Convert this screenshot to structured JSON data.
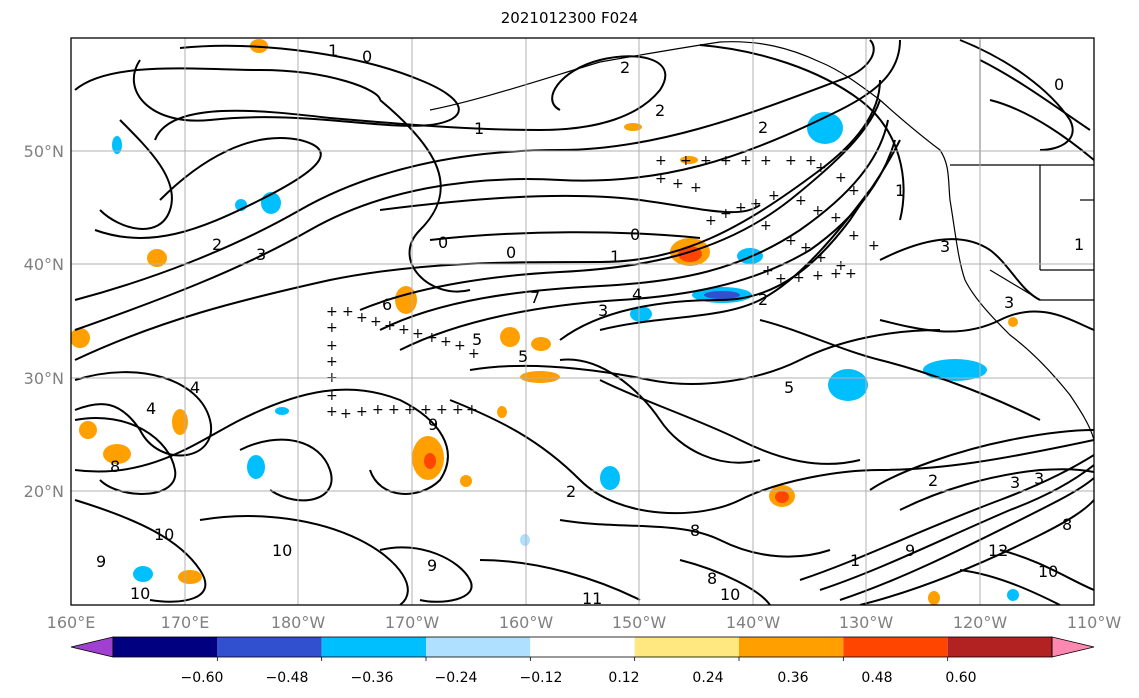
{
  "title": "2021012300 F024",
  "map": {
    "lon_range": [
      160,
      250
    ],
    "lat_range": [
      10,
      60
    ],
    "lon_labels": [
      "160°E",
      "170°E",
      "180°W",
      "170°W",
      "160°W",
      "150°W",
      "140°W",
      "130°W",
      "120°W",
      "110°W"
    ],
    "lat_labels": [
      "50°N",
      "40°N",
      "30°N",
      "20°N"
    ]
  },
  "contour_labels": [
    "1",
    "0",
    "2",
    "1",
    "2",
    "2",
    "0",
    "0",
    "1",
    "2",
    "3",
    "0",
    "0",
    "1",
    "3",
    "7",
    "6",
    "3",
    "4",
    "2",
    "3",
    "5",
    "5",
    "4",
    "4",
    "5",
    "1",
    "3",
    "2",
    "9",
    "8",
    "10",
    "9",
    "10",
    "9",
    "12",
    "10",
    "8",
    "11",
    "10",
    "2",
    "8",
    "3",
    "1",
    "9",
    "10",
    "8"
  ],
  "colorbar": {
    "tick_labels": [
      "−0.60",
      "−0.48",
      "−0.36",
      "−0.24",
      "−0.12",
      "0.12",
      "0.24",
      "0.36",
      "0.48",
      "0.60"
    ],
    "colors": [
      "#a040d0",
      "#000080",
      "#3050d0",
      "#00bfff",
      "#b0e0ff",
      "#ffffff",
      "#ffe880",
      "#ffa000",
      "#ff4500",
      "#b22222",
      "#ff88b0"
    ]
  }
}
